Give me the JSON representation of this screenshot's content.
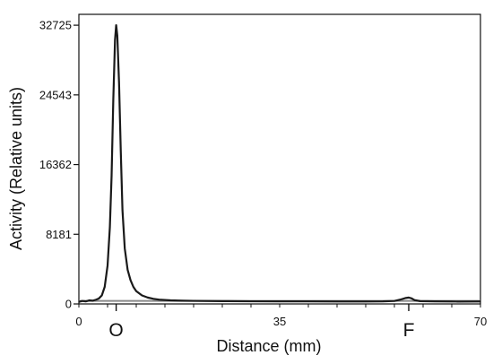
{
  "chart_data": {
    "type": "line",
    "title": "",
    "xlabel": "Distance (mm)",
    "ylabel": "Activity (Relative units)",
    "xlim": [
      0,
      70
    ],
    "ylim": [
      0,
      34000
    ],
    "x_ticks": [
      0,
      35,
      70
    ],
    "y_ticks": [
      0,
      8181,
      16362,
      24543,
      32725
    ],
    "markers": [
      {
        "label": "O",
        "x": 6.5
      },
      {
        "label": "F",
        "x": 57.5
      }
    ],
    "baseline_value": 350,
    "grid": false,
    "legend": "none",
    "line_color": "#1a1a1a",
    "baseline_color": "#8a8a8a",
    "series": [
      {
        "values": [
          [
            0,
            250
          ],
          [
            0.6,
            350
          ],
          [
            1.2,
            300
          ],
          [
            1.8,
            420
          ],
          [
            2.4,
            380
          ],
          [
            3.0,
            500
          ],
          [
            3.5,
            650
          ],
          [
            4.0,
            1000
          ],
          [
            4.5,
            2000
          ],
          [
            5.0,
            4500
          ],
          [
            5.4,
            9000
          ],
          [
            5.7,
            15000
          ],
          [
            6.0,
            24000
          ],
          [
            6.3,
            31000
          ],
          [
            6.5,
            32725
          ],
          [
            6.7,
            31500
          ],
          [
            7.0,
            26000
          ],
          [
            7.3,
            18000
          ],
          [
            7.6,
            11000
          ],
          [
            8.0,
            6500
          ],
          [
            8.5,
            4000
          ],
          [
            9.0,
            2800
          ],
          [
            9.5,
            2000
          ],
          [
            10.0,
            1500
          ],
          [
            11.0,
            1000
          ],
          [
            12.0,
            750
          ],
          [
            13.0,
            600
          ],
          [
            14.0,
            500
          ],
          [
            16.0,
            420
          ],
          [
            18.0,
            380
          ],
          [
            20.0,
            360
          ],
          [
            25.0,
            330
          ],
          [
            30.0,
            310
          ],
          [
            35.0,
            300
          ],
          [
            40.0,
            300
          ],
          [
            45.0,
            290
          ],
          [
            50.0,
            290
          ],
          [
            53.0,
            300
          ],
          [
            55.0,
            350
          ],
          [
            56.0,
            500
          ],
          [
            57.0,
            700
          ],
          [
            57.5,
            750
          ],
          [
            58.0,
            650
          ],
          [
            58.5,
            450
          ],
          [
            59.5,
            330
          ],
          [
            62.0,
            300
          ],
          [
            65.0,
            290
          ],
          [
            66.0,
            280
          ],
          [
            70.0,
            290
          ]
        ]
      }
    ]
  }
}
